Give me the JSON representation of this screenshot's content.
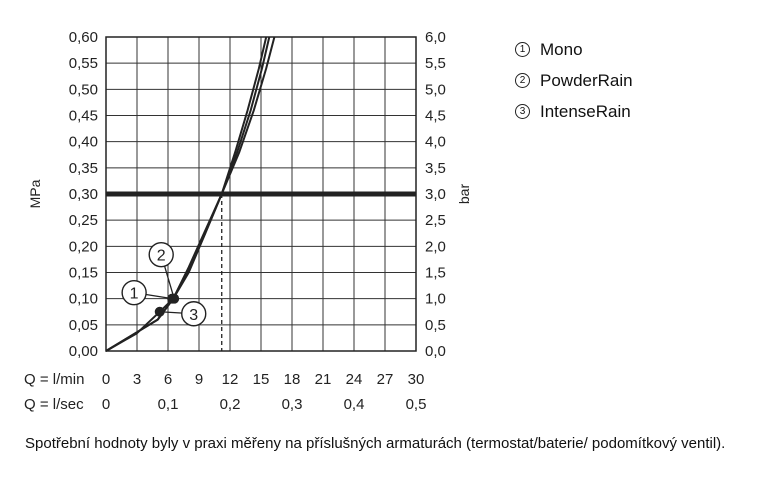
{
  "chart_data": {
    "type": "line",
    "y_left": {
      "label": "MPa",
      "min": 0,
      "max": 0.6,
      "step": 0.05,
      "ticks": [
        "0,00",
        "0,05",
        "0,10",
        "0,15",
        "0,20",
        "0,25",
        "0,30",
        "0,35",
        "0,40",
        "0,45",
        "0,50",
        "0,55",
        "0,60"
      ]
    },
    "y_right": {
      "label": "bar",
      "min": 0,
      "max": 6,
      "step": 0.5,
      "ticks": [
        "0,0",
        "0,5",
        "1,0",
        "1,5",
        "2,0",
        "2,5",
        "3,0",
        "3,5",
        "4,0",
        "4,5",
        "5,0",
        "5,5",
        "6,0"
      ]
    },
    "x_lmin": {
      "label": "Q = l/min",
      "min": 0,
      "max": 30,
      "ticks": [
        "0",
        "3",
        "6",
        "9",
        "12",
        "15",
        "18",
        "21",
        "24",
        "27",
        "30"
      ]
    },
    "x_lsec": {
      "label": "Q = l/sec",
      "ticks": [
        {
          "v": 0,
          "t": "0"
        },
        {
          "v": 0.1,
          "t": "0,1"
        },
        {
          "v": 0.2,
          "t": "0,2"
        },
        {
          "v": 0.3,
          "t": "0,3"
        },
        {
          "v": 0.4,
          "t": "0,4"
        },
        {
          "v": 0.5,
          "t": "0,5"
        }
      ]
    },
    "grid": true,
    "reference_line_mpa": 0.3,
    "reference_flow_lmin": 11.2,
    "series": [
      {
        "marker": "1",
        "name": "Mono",
        "points": [
          [
            0,
            0
          ],
          [
            3,
            0.036
          ],
          [
            5,
            0.06
          ],
          [
            6.5,
            0.1
          ],
          [
            8,
            0.15
          ],
          [
            9.5,
            0.22
          ],
          [
            11.2,
            0.3
          ],
          [
            12.5,
            0.38
          ],
          [
            13.7,
            0.46
          ],
          [
            14.8,
            0.54
          ],
          [
            15.5,
            0.6
          ]
        ]
      },
      {
        "marker": "2",
        "name": "PowderRain",
        "points": [
          [
            0,
            0
          ],
          [
            3,
            0.036
          ],
          [
            5,
            0.06
          ],
          [
            6.5,
            0.1
          ],
          [
            8,
            0.16
          ],
          [
            9.6,
            0.23
          ],
          [
            11.2,
            0.3
          ],
          [
            12.7,
            0.38
          ],
          [
            14.0,
            0.46
          ],
          [
            15.1,
            0.54
          ],
          [
            15.8,
            0.6
          ]
        ]
      },
      {
        "marker": "3",
        "name": "IntenseRain",
        "points": [
          [
            0,
            0
          ],
          [
            3,
            0.034
          ],
          [
            5.2,
            0.075
          ],
          [
            6.5,
            0.1
          ],
          [
            8,
            0.155
          ],
          [
            9.6,
            0.225
          ],
          [
            11.2,
            0.3
          ],
          [
            12.9,
            0.38
          ],
          [
            14.3,
            0.46
          ],
          [
            15.5,
            0.54
          ],
          [
            16.3,
            0.6
          ]
        ]
      }
    ],
    "markers": [
      {
        "label": "1",
        "x": 6.4,
        "y": 0.1,
        "dx": -38,
        "dy": -6
      },
      {
        "label": "2",
        "x": 6.6,
        "y": 0.1,
        "dx": -13,
        "dy": -44
      },
      {
        "label": "3",
        "x": 5.2,
        "y": 0.075,
        "dx": 34,
        "dy": 2
      }
    ]
  },
  "legend": [
    {
      "mark": "1",
      "label": "Mono"
    },
    {
      "mark": "2",
      "label": "PowderRain"
    },
    {
      "mark": "3",
      "label": "IntenseRain"
    }
  ],
  "caption": "Spotřební hodnoty byly v praxi měřeny na příslušných armaturách (termostat/baterie/ podomítkový ventil)."
}
